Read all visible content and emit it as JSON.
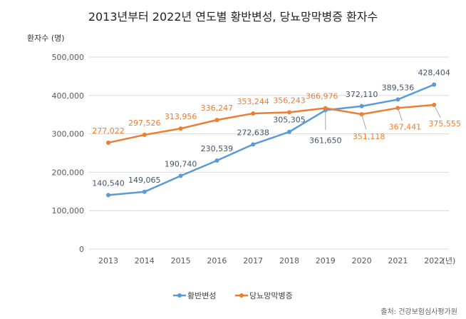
{
  "chart_data": {
    "type": "line",
    "title": "2013년부터 2022년 연도별 황반변성, 당뇨망막병증 환자수",
    "ylabel": "환자수 (명)",
    "xlabel": "(년)",
    "categories": [
      "2013",
      "2014",
      "2015",
      "2016",
      "2017",
      "2018",
      "2019",
      "2020",
      "2021",
      "2022"
    ],
    "ylim": [
      0,
      500000
    ],
    "yticks": [
      "0",
      "100,000",
      "200,000",
      "300,000",
      "400,000",
      "500,000"
    ],
    "grid": true,
    "legend": "bottom",
    "series": [
      {
        "name": "황반변성",
        "color": "#5b9bd5",
        "values": [
          140540,
          149065,
          190740,
          230539,
          272638,
          305305,
          361650,
          372110,
          389536,
          428404
        ],
        "labels": [
          "140,540",
          "149,065",
          "190,740",
          "230,539",
          "272,638",
          "305,305",
          "361,650",
          "372,110",
          "389,536",
          "428,404"
        ],
        "label_color": "#44546a"
      },
      {
        "name": "당뇨망막병증",
        "color": "#ed7d31",
        "values": [
          277022,
          297526,
          313956,
          336247,
          353244,
          356243,
          366976,
          351118,
          367441,
          375555
        ],
        "labels": [
          "277,022",
          "297,526",
          "313,956",
          "336,247",
          "353,244",
          "356,243",
          "366,976",
          "351,118",
          "367,441",
          "375,555"
        ],
        "label_color": "#ed7d31"
      }
    ]
  },
  "source": "출처: 건강보험심사평가원"
}
